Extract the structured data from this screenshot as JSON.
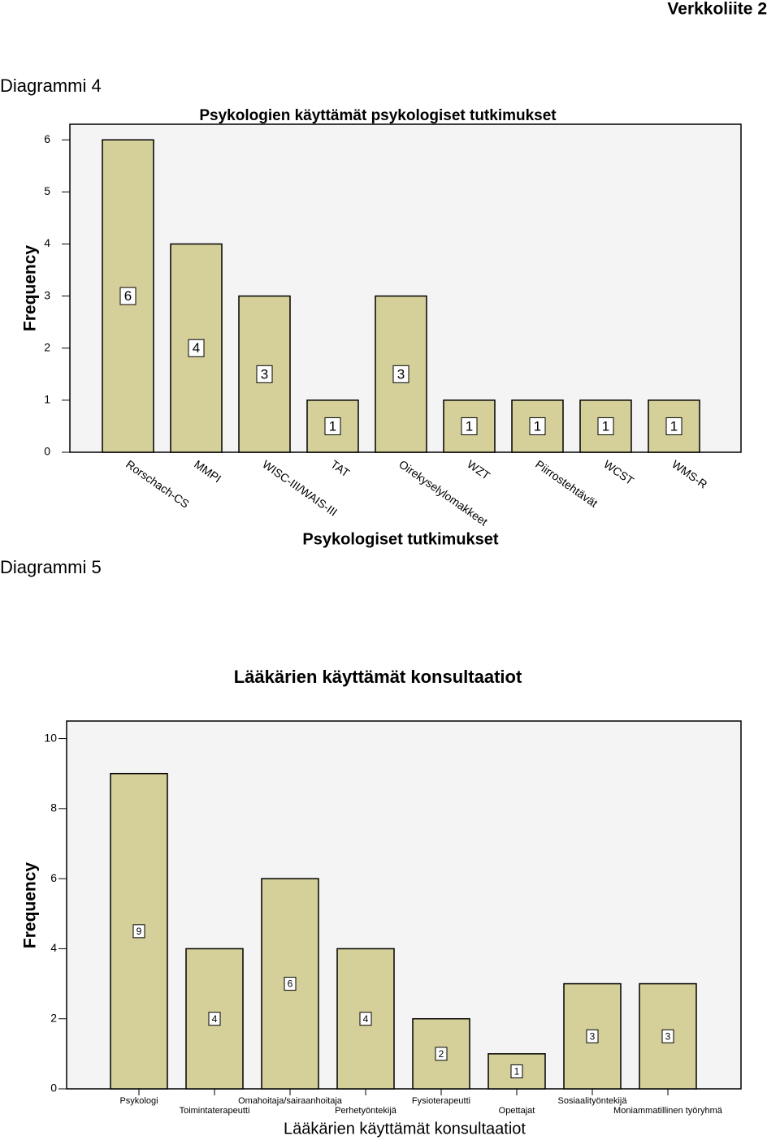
{
  "header": "Verkkoliite 2",
  "captions": [
    "Diagrammi 4",
    "Diagrammi 5"
  ],
  "chart_data": [
    {
      "type": "bar",
      "title": "Psykologien käyttämät psykologiset tutkimukset",
      "x_label": "Psykologiset tutkimukset",
      "y_label": "Frequency",
      "categories": [
        "Rorschach-CS",
        "MMPI",
        "WISC-III/WAIS-III",
        "TAT",
        "Oirekyselylomakkeet",
        "WZT",
        "Piirrostehtävät",
        "WCST",
        "WMS-R"
      ],
      "values": [
        6,
        4,
        3,
        1,
        3,
        1,
        1,
        1,
        1
      ],
      "color": "#d5d09a",
      "ylim": [
        0,
        6.3
      ],
      "yticks": [
        0,
        1,
        2,
        3,
        4,
        5,
        6
      ]
    },
    {
      "type": "bar",
      "title": "Lääkärien käyttämät konsultaatiot",
      "x_label": "Lääkärien käyttämät konsultaatiot",
      "y_label": "Frequency",
      "categories": [
        "Psykologi",
        "Toimintaterapeutti",
        "Omahoitaja/sairaanhoitaja",
        "Perhetyöntekijä",
        "Fysioterapeutti",
        "Opettajat",
        "Sosiaalityöntekijä",
        "Moniammatillinen työryhmä"
      ],
      "values": [
        9,
        4,
        6,
        4,
        2,
        1,
        3,
        3
      ],
      "color": "#d5d09a",
      "ylim": [
        0,
        10.5
      ],
      "yticks": [
        0,
        2,
        4,
        6,
        8,
        10
      ]
    }
  ]
}
